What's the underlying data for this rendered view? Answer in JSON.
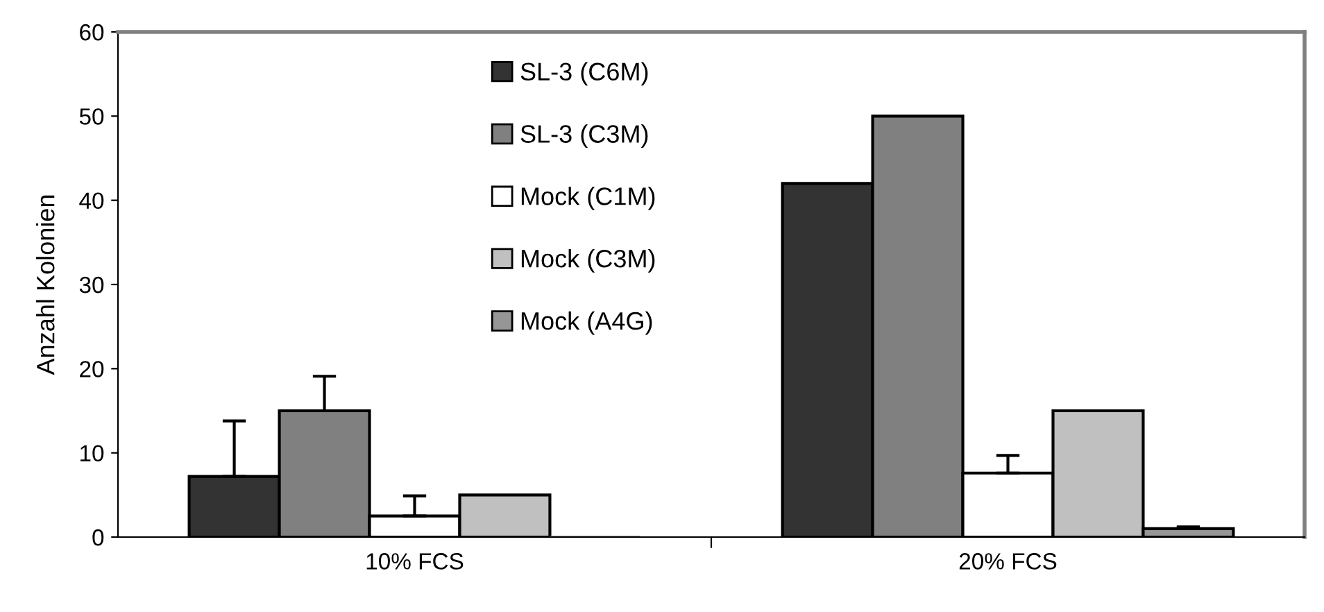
{
  "chart_data": {
    "type": "bar",
    "ylabel": "Anzahl Kolonien",
    "categories": [
      "10% FCS",
      "20% FCS"
    ],
    "series": [
      {
        "name": "SL-3 (C6M)",
        "color": "#333333",
        "values": [
          7.2,
          42
        ],
        "errors": [
          6.6,
          null
        ]
      },
      {
        "name": "SL-3 (C3M)",
        "color": "#808080",
        "values": [
          15,
          50
        ],
        "errors": [
          4.1,
          null
        ]
      },
      {
        "name": "Mock (C1M)",
        "color": "#ffffff",
        "values": [
          2.5,
          7.6
        ],
        "errors": [
          2.4,
          2.1
        ]
      },
      {
        "name": "Mock (C3M)",
        "color": "#c0c0c0",
        "values": [
          5,
          15
        ],
        "errors": [
          null,
          null
        ]
      },
      {
        "name": "Mock (A4G)",
        "color": "#969696",
        "values": [
          0,
          1
        ],
        "errors": [
          null,
          0.2
        ]
      }
    ],
    "ylim": [
      0,
      60
    ],
    "yticks": [
      0,
      10,
      20,
      30,
      40,
      50,
      60
    ],
    "grid": false,
    "legend": "top"
  }
}
